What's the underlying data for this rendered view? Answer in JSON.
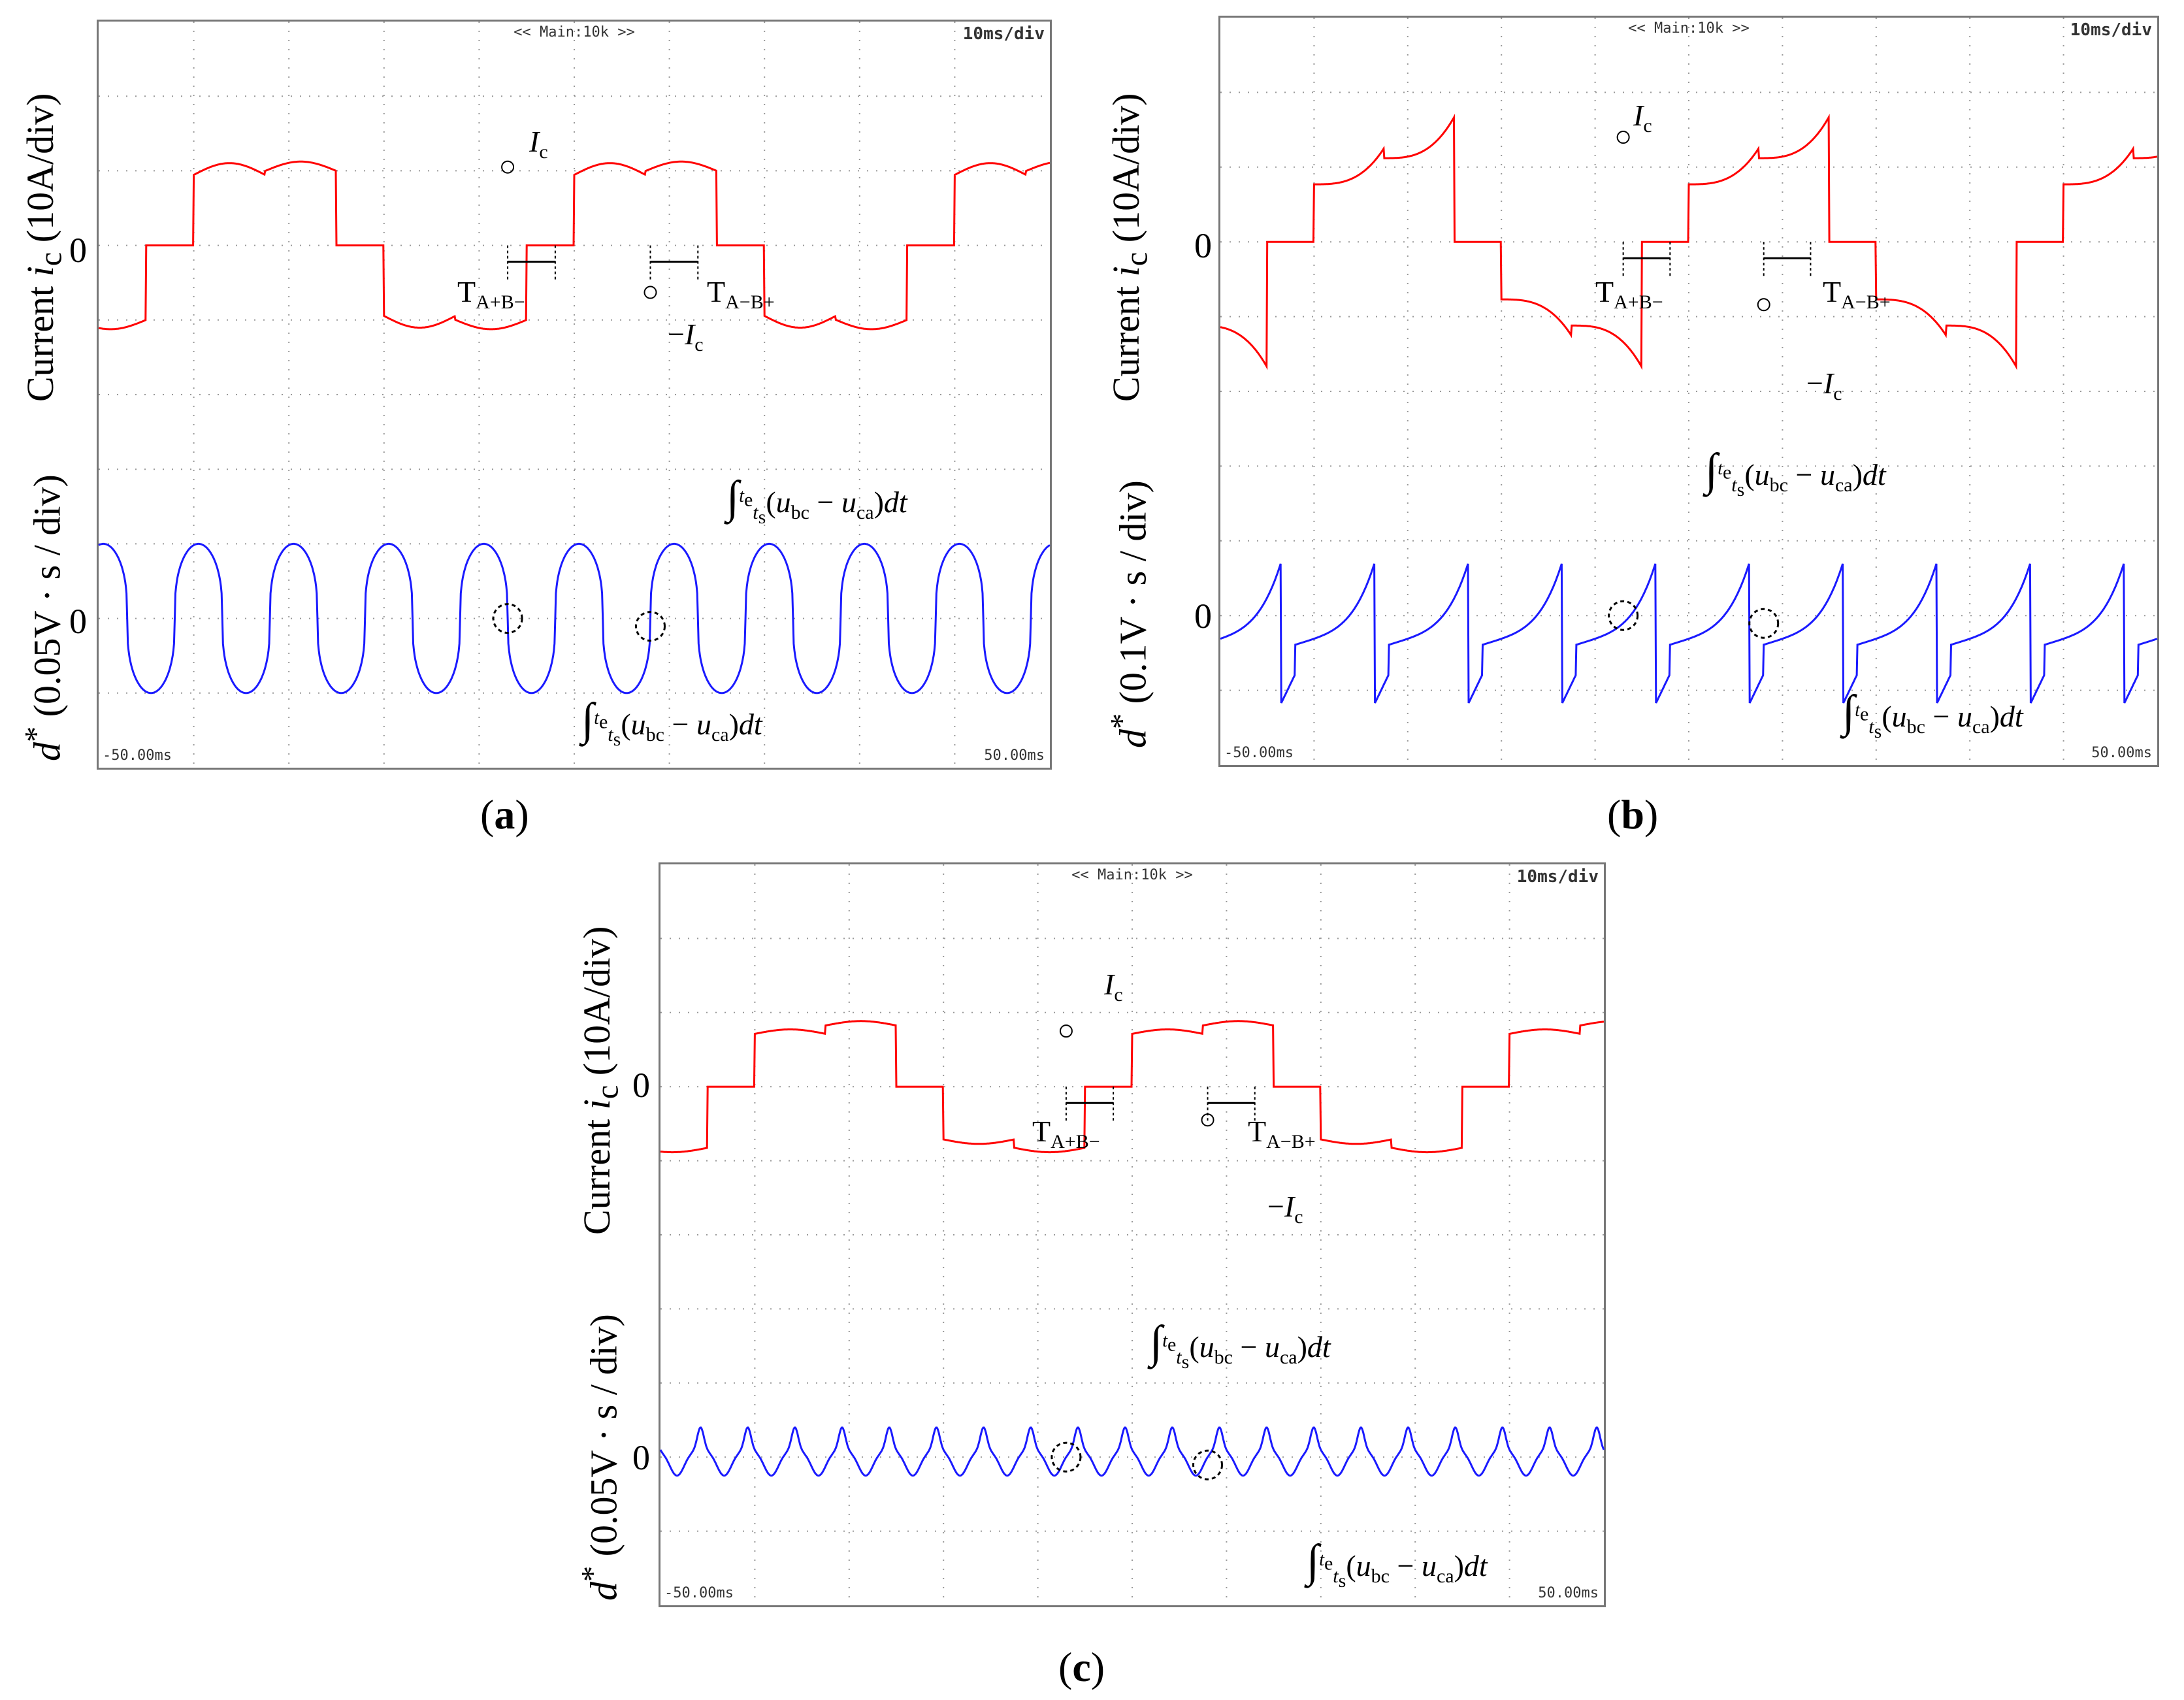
{
  "chart_data": [
    {
      "type": "line",
      "id": "a",
      "caption": "a",
      "scope_header": "<< Main:10k >>",
      "time_scale": "10ms/div",
      "x_start": "-50.00ms",
      "x_end": "50.00ms",
      "xlim": [
        -50,
        50
      ],
      "current_label": {
        "prefix": "Current ",
        "var": "i",
        "sub": "c",
        "unit": " (10A/div)"
      },
      "flux_label": {
        "var": "d",
        "sup": "*",
        "unit": " (0.05V · s / div)"
      },
      "zero_tick": "0",
      "series": [
        {
          "name": "Current i_c",
          "color": "#ff0000",
          "shape": "flat-top",
          "amplitude_div": 1.05,
          "period_ms": 40,
          "zero_gap_ms": 5
        },
        {
          "name": "d*",
          "color": "#1a1aff",
          "shape": "rounded-square",
          "amplitude_div": 1.0,
          "period_ms": 10
        }
      ],
      "annotations": [
        "Ic",
        "-Ic",
        "TA+B-",
        "TA-B+",
        "int_top",
        "int_bottom"
      ]
    },
    {
      "type": "line",
      "id": "b",
      "caption": "b",
      "scope_header": "<< Main:10k >>",
      "time_scale": "10ms/div",
      "x_start": "-50.00ms",
      "x_end": "50.00ms",
      "xlim": [
        -50,
        50
      ],
      "current_label": {
        "prefix": "Current ",
        "var": "i",
        "sub": "c",
        "unit": " (10A/div)"
      },
      "flux_label": {
        "var": "d",
        "sup": "*",
        "unit": " (0.1V · s / div)"
      },
      "zero_tick": "0",
      "series": [
        {
          "name": "Current i_c",
          "color": "#ff0000",
          "shape": "spiky",
          "amplitude_div": 1.4,
          "period_ms": 40,
          "zero_gap_ms": 5
        },
        {
          "name": "d*",
          "color": "#1a1aff",
          "shape": "sawtooth",
          "amplitude_div": 1.3,
          "period_ms": 10
        }
      ],
      "annotations": [
        "Ic",
        "-Ic",
        "TA+B-",
        "TA-B+",
        "int_top",
        "int_bottom"
      ]
    },
    {
      "type": "line",
      "id": "c",
      "caption": "c",
      "scope_header": "<< Main:10k >>",
      "time_scale": "10ms/div",
      "x_start": "-50.00ms",
      "x_end": "50.00ms",
      "xlim": [
        -50,
        50
      ],
      "current_label": {
        "prefix": "Current ",
        "var": "i",
        "sub": "c",
        "unit": " (10A/div)"
      },
      "flux_label": {
        "var": "d",
        "sup": "*",
        "unit": " (0.05V · s / div)"
      },
      "zero_tick": "0",
      "series": [
        {
          "name": "Current i_c",
          "color": "#ff0000",
          "shape": "flat-top-small",
          "amplitude_div": 0.75,
          "period_ms": 40,
          "zero_gap_ms": 5
        },
        {
          "name": "d*",
          "color": "#1a1aff",
          "shape": "small-ripple",
          "amplitude_div": 0.5,
          "period_ms": 5
        }
      ],
      "annotations": [
        "Ic",
        "-Ic",
        "TA+B-",
        "TA-B+",
        "int_top",
        "int_bottom"
      ]
    }
  ],
  "text": {
    "Ic_var": "I",
    "Ic_sub": "c",
    "neg": "−",
    "TApBm_T": "T",
    "TApBm_sub": "A+B−",
    "TAmBp_T": "T",
    "TAmBp_sub": "A−B+",
    "int_sym": "∫",
    "int_upper": "t",
    "int_upper_sub": "e",
    "int_lower": "t",
    "int_lower_sub": "s",
    "int_body_open": "(",
    "int_u1": "u",
    "int_u1_sub": "bc",
    "int_minus": " − ",
    "int_u2": "u",
    "int_u2_sub": "ca",
    "int_body_close": ")",
    "int_dt": "dt"
  },
  "captions": {
    "a": "a",
    "b": "b",
    "c": "c"
  }
}
